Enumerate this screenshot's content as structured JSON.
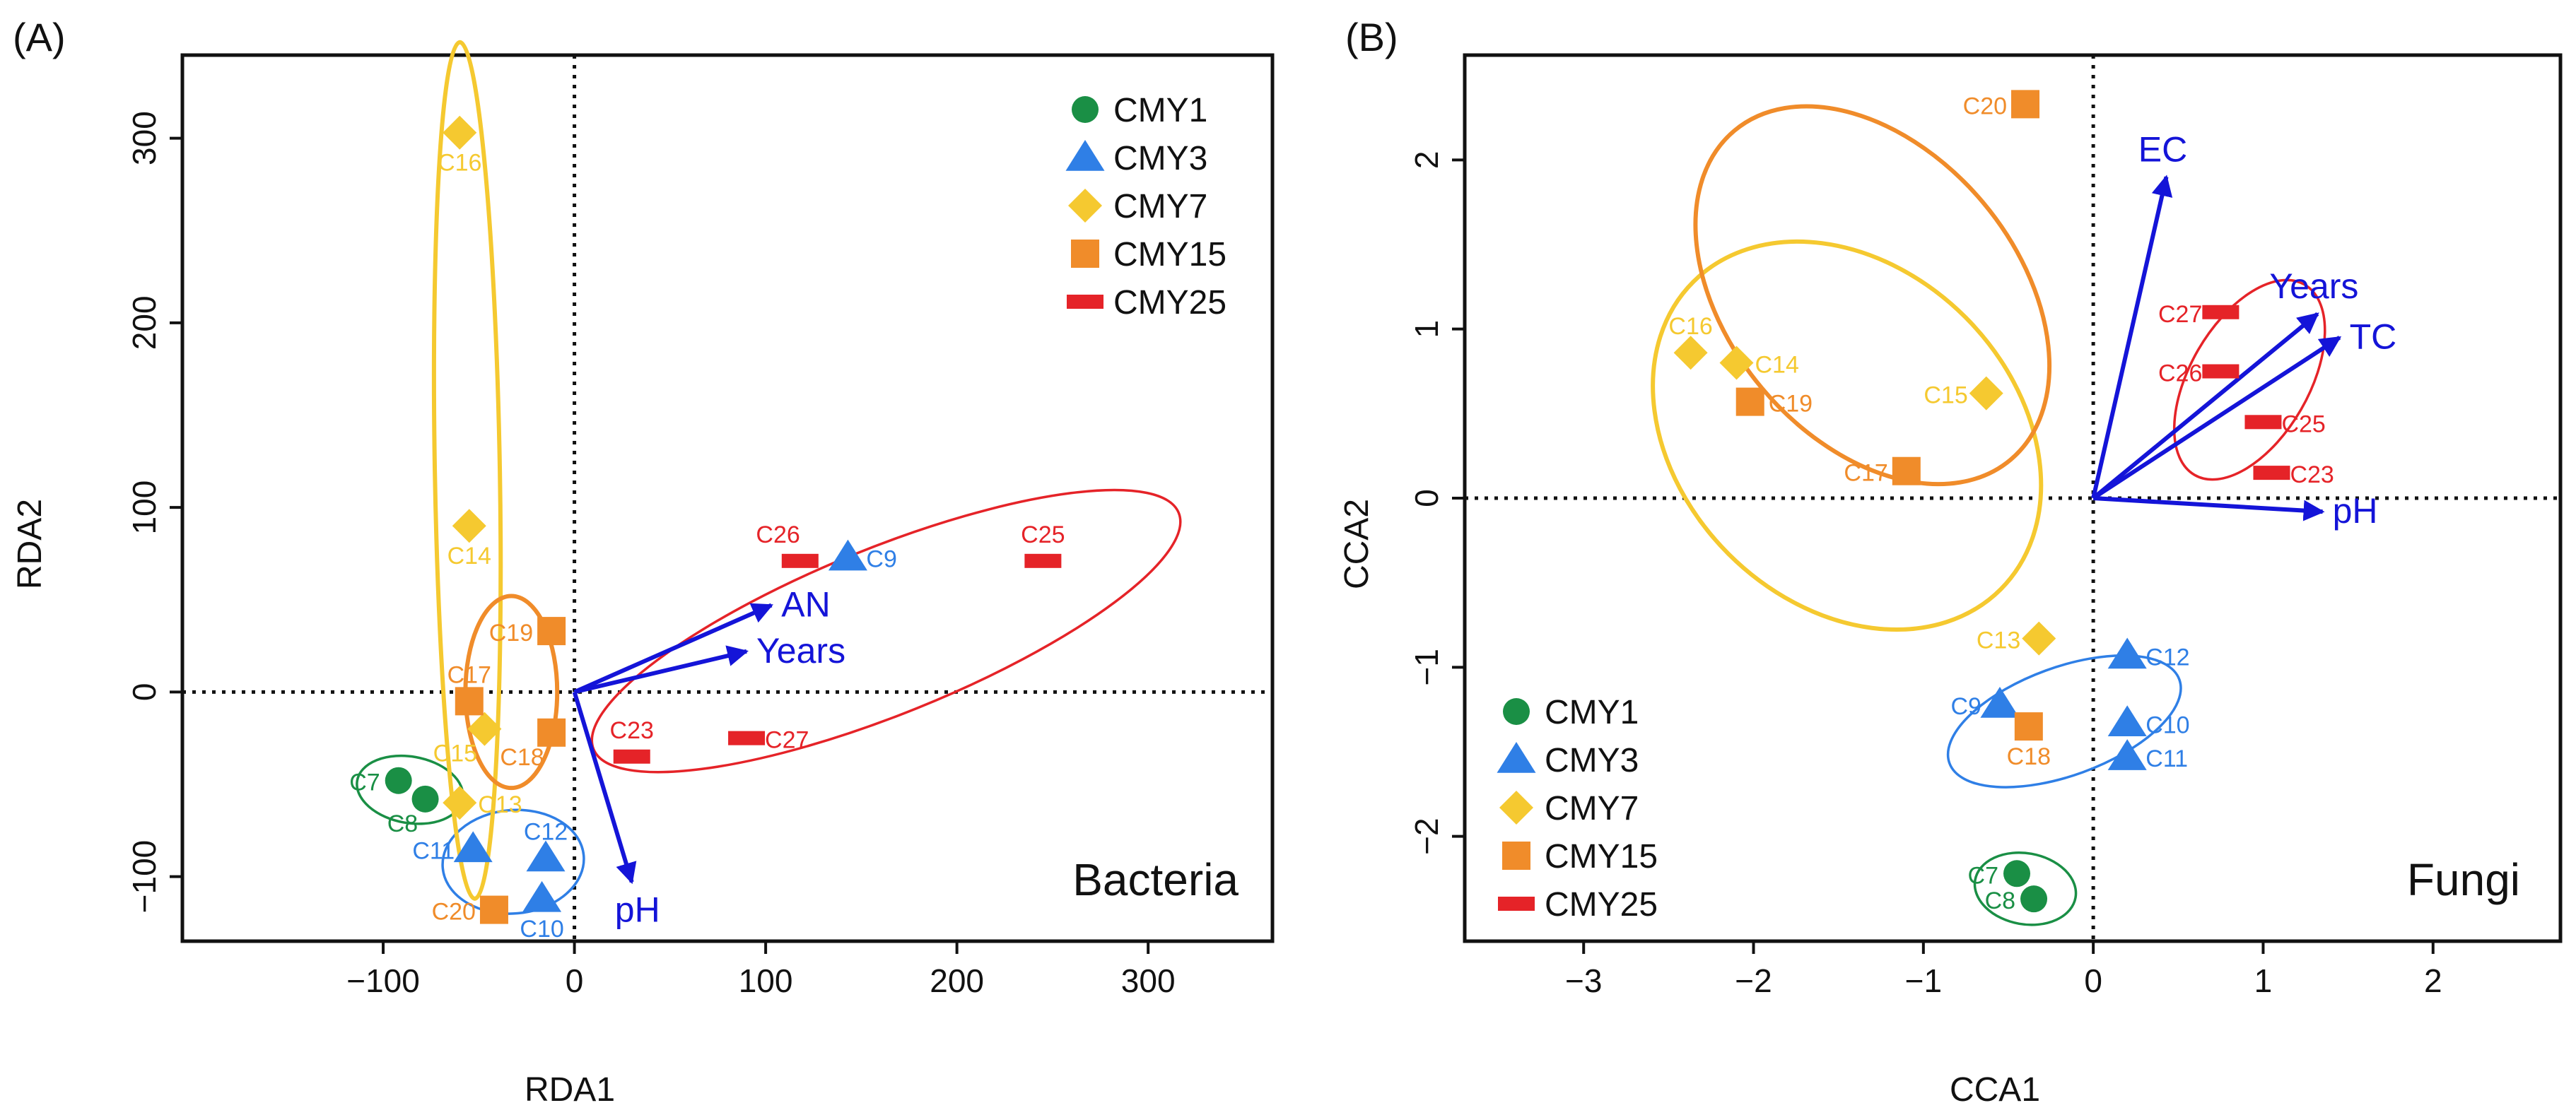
{
  "colors": {
    "CMY1": "#1a8f45",
    "CMY3": "#2f7fe6",
    "CMY7": "#f5c930",
    "CMY15": "#f08c2a",
    "CMY25": "#e52328",
    "arrow": "#1414d8",
    "axis": "#111111"
  },
  "chart_data": [
    {
      "type": "scatter",
      "panel": "(A)",
      "subtitle": "Bacteria",
      "xlabel": "RDA1",
      "ylabel": "RDA2",
      "xlim": [
        -205,
        365
      ],
      "ylim": [
        -135,
        345
      ],
      "xticks": [
        -100,
        0,
        100,
        200,
        300
      ],
      "yticks": [
        -100,
        0,
        100,
        200,
        300
      ],
      "xtick_labels": [
        "−100",
        "0",
        "100",
        "200",
        "300"
      ],
      "ytick_labels": [
        "−100",
        "0",
        "100",
        "200",
        "300"
      ],
      "legend_position": "top-right",
      "legend": [
        {
          "name": "CMY1",
          "shape": "circle"
        },
        {
          "name": "CMY3",
          "shape": "triangle"
        },
        {
          "name": "CMY7",
          "shape": "diamond"
        },
        {
          "name": "CMY15",
          "shape": "square"
        },
        {
          "name": "CMY25",
          "shape": "rect"
        }
      ],
      "points": [
        {
          "label": "C7",
          "group": "CMY1",
          "x": -92,
          "y": -48,
          "lpos": "left"
        },
        {
          "label": "C8",
          "group": "CMY1",
          "x": -78,
          "y": -58,
          "lpos": "below-left"
        },
        {
          "label": "C9",
          "group": "CMY3",
          "x": 143,
          "y": 73,
          "lpos": "right"
        },
        {
          "label": "C10",
          "group": "CMY3",
          "x": -17,
          "y": -112,
          "lpos": "below"
        },
        {
          "label": "C11",
          "group": "CMY3",
          "x": -53,
          "y": -85,
          "lpos": "left"
        },
        {
          "label": "C12",
          "group": "CMY3",
          "x": -15,
          "y": -90,
          "lpos": "above"
        },
        {
          "label": "C13",
          "group": "CMY7",
          "x": -60,
          "y": -60,
          "lpos": "right"
        },
        {
          "label": "C14",
          "group": "CMY7",
          "x": -55,
          "y": 90,
          "lpos": "below"
        },
        {
          "label": "C15",
          "group": "CMY7",
          "x": -47,
          "y": -20,
          "lpos": "below-left"
        },
        {
          "label": "C16",
          "group": "CMY7",
          "x": -60,
          "y": 303,
          "lpos": "below"
        },
        {
          "label": "C17",
          "group": "CMY15",
          "x": -55,
          "y": -5,
          "lpos": "above"
        },
        {
          "label": "C18",
          "group": "CMY15",
          "x": -12,
          "y": -22,
          "lpos": "below-left"
        },
        {
          "label": "C19",
          "group": "CMY15",
          "x": -12,
          "y": 33,
          "lpos": "left"
        },
        {
          "label": "C20",
          "group": "CMY15",
          "x": -42,
          "y": -118,
          "lpos": "left"
        },
        {
          "label": "C23",
          "group": "CMY25",
          "x": 30,
          "y": -35,
          "lpos": "above"
        },
        {
          "label": "C25",
          "group": "CMY25",
          "x": 245,
          "y": 71,
          "lpos": "above"
        },
        {
          "label": "C26",
          "group": "CMY25",
          "x": 118,
          "y": 71,
          "lpos": "above-left"
        },
        {
          "label": "C27",
          "group": "CMY25",
          "x": 90,
          "y": -25,
          "lpos": "right"
        }
      ],
      "vectors": [
        {
          "label": "AN",
          "x": 103,
          "y": 47,
          "lpos": "right"
        },
        {
          "label": "Years",
          "x": 90,
          "y": 22,
          "lpos": "right"
        },
        {
          "label": "pH",
          "x": 30,
          "y": -103,
          "lpos": "below"
        }
      ],
      "ellipses": [
        {
          "group": "CMY1",
          "cx": -86,
          "cy": -53,
          "rx": 28,
          "ry": 18,
          "angle": -10
        },
        {
          "group": "CMY3",
          "cx": -32,
          "cy": -92,
          "rx": 37,
          "ry": 28,
          "angle": 5
        },
        {
          "group": "CMY7",
          "cx": -56,
          "cy": 120,
          "rx": 17,
          "ry": 232,
          "angle": 1
        },
        {
          "group": "CMY15",
          "cx": -33,
          "cy": 0,
          "rx": 24,
          "ry": 52,
          "angle": 0
        },
        {
          "group": "CMY25",
          "cx": 163,
          "cy": 33,
          "rx": 165,
          "ry": 45,
          "angle": 22
        }
      ]
    },
    {
      "type": "scatter",
      "panel": "(B)",
      "subtitle": "Fungi",
      "xlabel": "CCA1",
      "ylabel": "CCA2",
      "xlim": [
        -3.7,
        2.75
      ],
      "ylim": [
        -2.62,
        2.62
      ],
      "xticks": [
        -3,
        -2,
        -1,
        0,
        1,
        2
      ],
      "yticks": [
        -2,
        -1,
        0,
        1,
        2
      ],
      "xtick_labels": [
        "−3",
        "−2",
        "−1",
        "0",
        "1",
        "2"
      ],
      "ytick_labels": [
        "−2",
        "−1",
        "0",
        "1",
        "2"
      ],
      "legend_position": "bottom-left",
      "legend": [
        {
          "name": "CMY1",
          "shape": "circle"
        },
        {
          "name": "CMY3",
          "shape": "triangle"
        },
        {
          "name": "CMY7",
          "shape": "diamond"
        },
        {
          "name": "CMY15",
          "shape": "square"
        },
        {
          "name": "CMY25",
          "shape": "rect"
        }
      ],
      "points": [
        {
          "label": "C7",
          "group": "CMY1",
          "x": -0.45,
          "y": -2.22,
          "lpos": "left"
        },
        {
          "label": "C8",
          "group": "CMY1",
          "x": -0.35,
          "y": -2.37,
          "lpos": "left"
        },
        {
          "label": "C9",
          "group": "CMY3",
          "x": -0.55,
          "y": -1.22,
          "lpos": "left"
        },
        {
          "label": "C10",
          "group": "CMY3",
          "x": 0.2,
          "y": -1.33,
          "lpos": "right"
        },
        {
          "label": "C11",
          "group": "CMY3",
          "x": 0.2,
          "y": -1.53,
          "lpos": "right"
        },
        {
          "label": "C12",
          "group": "CMY3",
          "x": 0.2,
          "y": -0.93,
          "lpos": "right"
        },
        {
          "label": "C13",
          "group": "CMY7",
          "x": -0.32,
          "y": -0.83,
          "lpos": "left"
        },
        {
          "label": "C14",
          "group": "CMY7",
          "x": -2.1,
          "y": 0.8,
          "lpos": "right"
        },
        {
          "label": "C15",
          "group": "CMY7",
          "x": -0.63,
          "y": 0.62,
          "lpos": "left"
        },
        {
          "label": "C16",
          "group": "CMY7",
          "x": -2.37,
          "y": 0.86,
          "lpos": "above"
        },
        {
          "label": "C17",
          "group": "CMY15",
          "x": -1.1,
          "y": 0.16,
          "lpos": "left"
        },
        {
          "label": "C18",
          "group": "CMY15",
          "x": -0.38,
          "y": -1.35,
          "lpos": "below"
        },
        {
          "label": "C19",
          "group": "CMY15",
          "x": -2.02,
          "y": 0.57,
          "lpos": "right"
        },
        {
          "label": "C20",
          "group": "CMY15",
          "x": -0.4,
          "y": 2.33,
          "lpos": "left"
        },
        {
          "label": "C23",
          "group": "CMY25",
          "x": 1.05,
          "y": 0.15,
          "lpos": "right"
        },
        {
          "label": "C25",
          "group": "CMY25",
          "x": 1.0,
          "y": 0.45,
          "lpos": "right"
        },
        {
          "label": "C26",
          "group": "CMY25",
          "x": 0.75,
          "y": 0.75,
          "lpos": "left"
        },
        {
          "label": "C27",
          "group": "CMY25",
          "x": 0.75,
          "y": 1.1,
          "lpos": "left"
        }
      ],
      "vectors": [
        {
          "label": "EC",
          "x": 0.43,
          "y": 1.9,
          "lpos": "above"
        },
        {
          "label": "Years",
          "x": 1.32,
          "y": 1.09,
          "lpos": "above"
        },
        {
          "label": "TC",
          "x": 1.45,
          "y": 0.95,
          "lpos": "right"
        },
        {
          "label": "pH",
          "x": 1.35,
          "y": -0.08,
          "lpos": "right"
        }
      ],
      "ellipses": [
        {
          "group": "CMY1",
          "cx": -0.4,
          "cy": -2.31,
          "rx": 0.3,
          "ry": 0.21,
          "angle": -10
        },
        {
          "group": "CMY3",
          "cx": -0.17,
          "cy": -1.32,
          "rx": 0.72,
          "ry": 0.32,
          "angle": 20
        },
        {
          "group": "CMY7",
          "cx": -1.45,
          "cy": 0.37,
          "rx": 1.28,
          "ry": 0.99,
          "angle": -45
        },
        {
          "group": "CMY15",
          "cx": -1.3,
          "cy": 1.2,
          "rx": 0.85,
          "ry": 1.27,
          "angle": 40
        },
        {
          "group": "CMY25",
          "cx": 0.92,
          "cy": 0.7,
          "rx": 0.35,
          "ry": 0.65,
          "angle": -30
        }
      ]
    }
  ]
}
